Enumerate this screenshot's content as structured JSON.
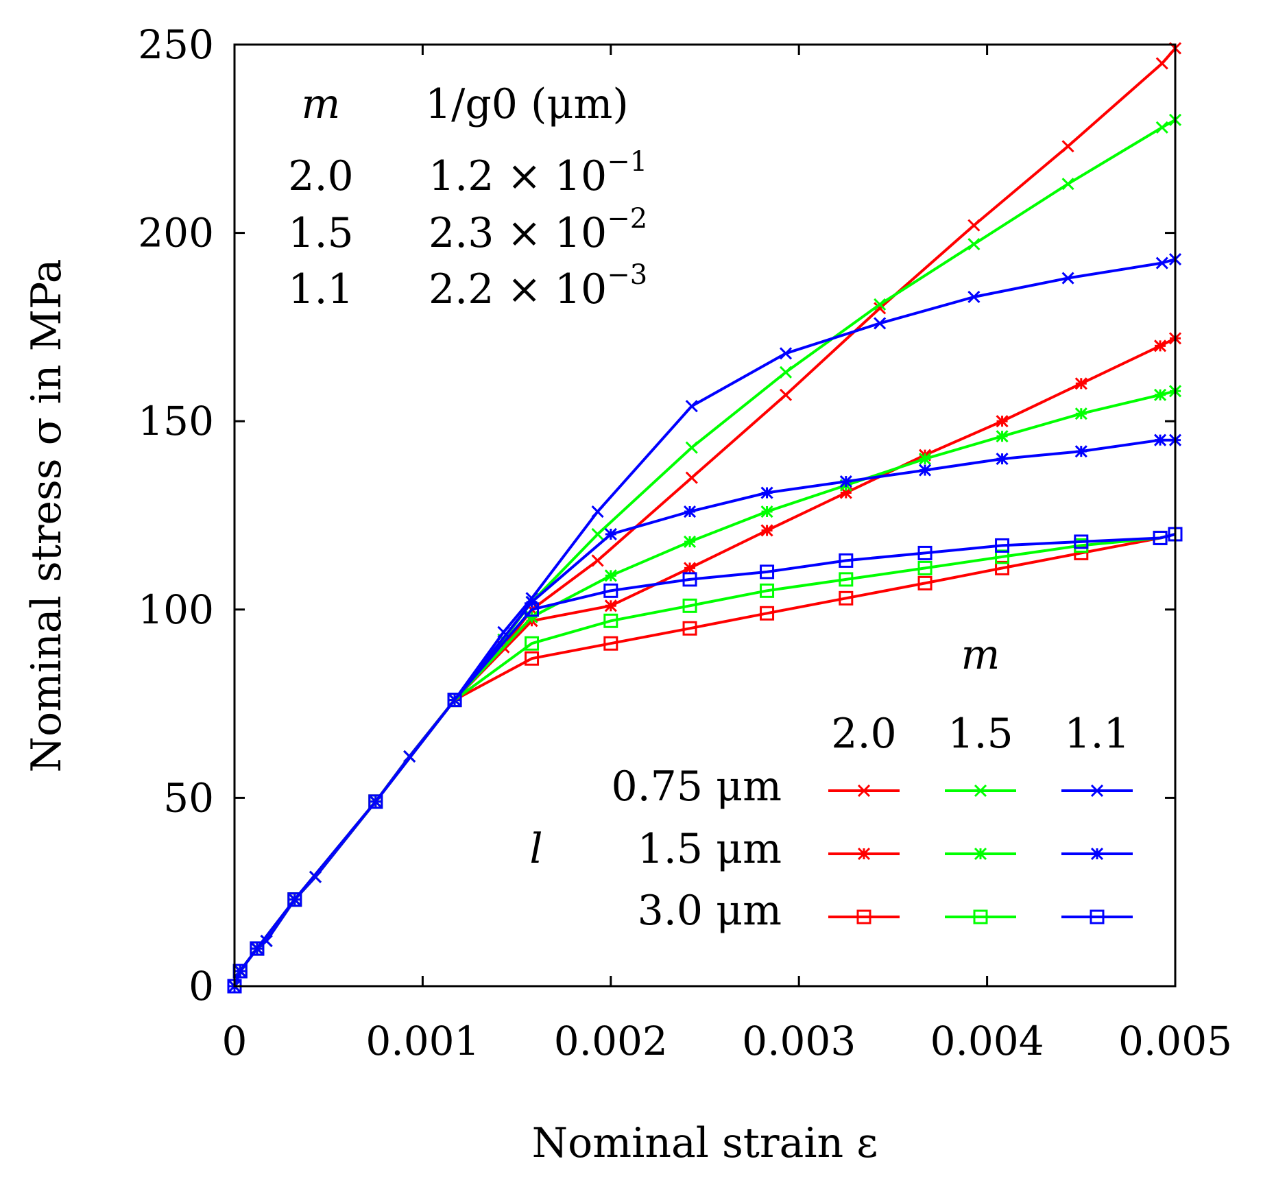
{
  "chart_data": {
    "type": "line",
    "xlabel": "Nominal strain ε",
    "ylabel": "Nominal stress σ in MPa",
    "xlim": [
      0,
      0.005
    ],
    "ylim": [
      0,
      250
    ],
    "xticks": [
      0,
      0.001,
      0.002,
      0.003,
      0.004,
      0.005
    ],
    "xtick_labels": [
      "0",
      "0.001",
      "0.002",
      "0.003",
      "0.004",
      "0.005"
    ],
    "yticks": [
      0,
      50,
      100,
      150,
      200,
      250
    ],
    "ytick_labels": [
      "0",
      "50",
      "100",
      "150",
      "200",
      "250"
    ],
    "grid": false,
    "series_colors": {
      "2.0": "#ff0000",
      "1.5": "#00ff00",
      "1.1": "#0000ff"
    },
    "parameter_table": {
      "header_m": "m",
      "header_g0": "1/g0 (μm)",
      "rows": [
        {
          "m": "2.0",
          "g0": "1.2 × 10^-1",
          "mant": "1.2 × 10",
          "exp": "−1"
        },
        {
          "m": "1.5",
          "g0": "2.3 × 10^-2",
          "mant": "2.3 × 10",
          "exp": "−2"
        },
        {
          "m": "1.1",
          "g0": "2.2 × 10^-3",
          "mant": "2.2 × 10",
          "exp": "−3"
        }
      ]
    },
    "legend": {
      "placement": "bottom-right",
      "m_label": "m",
      "m_values": [
        "2.0",
        "1.5",
        "1.1"
      ],
      "l_label": "l",
      "l_values": [
        "0.75 μm",
        "1.5 μm",
        "3.0 μm"
      ]
    },
    "series": [
      {
        "name": "l=0.75 μm, m=2.0",
        "color": "#ff0000",
        "marker": "x",
        "x": [
          0,
          3e-05,
          0.00012,
          0.00017,
          0.00032,
          0.00043,
          0.00075,
          0.00093,
          0.00117,
          0.00143,
          0.00158,
          0.00193,
          0.00243,
          0.00293,
          0.00343,
          0.00393,
          0.00443,
          0.00493,
          0.005
        ],
        "y": [
          0,
          4,
          10,
          12,
          23,
          29,
          49,
          61,
          76,
          90,
          100,
          113,
          135,
          157,
          180,
          202,
          223,
          245,
          249
        ]
      },
      {
        "name": "l=0.75 μm, m=1.5",
        "color": "#00ff00",
        "marker": "x",
        "x": [
          0,
          3e-05,
          0.00012,
          0.00017,
          0.00032,
          0.00043,
          0.00075,
          0.00093,
          0.00117,
          0.00143,
          0.00158,
          0.00193,
          0.00243,
          0.00293,
          0.00343,
          0.00393,
          0.00443,
          0.00493,
          0.005
        ],
        "y": [
          0,
          4,
          10,
          12,
          23,
          29,
          49,
          61,
          76,
          92,
          102,
          120,
          143,
          163,
          181,
          197,
          213,
          228,
          230
        ]
      },
      {
        "name": "l=0.75 μm, m=1.1",
        "color": "#0000ff",
        "marker": "x",
        "x": [
          0,
          3e-05,
          0.00012,
          0.00017,
          0.00032,
          0.00043,
          0.00075,
          0.00093,
          0.00117,
          0.00143,
          0.00158,
          0.00193,
          0.00243,
          0.00293,
          0.00343,
          0.00393,
          0.00443,
          0.00493,
          0.005
        ],
        "y": [
          0,
          4,
          10,
          12,
          23,
          29,
          49,
          61,
          76,
          94,
          103,
          126,
          154,
          168,
          176,
          183,
          188,
          192,
          193
        ]
      },
      {
        "name": "l=1.5 μm, m=2.0",
        "color": "#ff0000",
        "marker": "x*",
        "x": [
          0,
          3e-05,
          0.00012,
          0.00032,
          0.00075,
          0.00117,
          0.00158,
          0.002,
          0.00242,
          0.00283,
          0.00325,
          0.00367,
          0.00408,
          0.0045,
          0.00492,
          0.005
        ],
        "y": [
          0,
          4,
          10,
          23,
          49,
          76,
          97,
          101,
          111,
          121,
          131,
          141,
          150,
          160,
          170,
          172
        ]
      },
      {
        "name": "l=1.5 μm, m=1.5",
        "color": "#00ff00",
        "marker": "x*",
        "x": [
          0,
          3e-05,
          0.00012,
          0.00032,
          0.00075,
          0.00117,
          0.00158,
          0.002,
          0.00242,
          0.00283,
          0.00325,
          0.00367,
          0.00408,
          0.0045,
          0.00492,
          0.005
        ],
        "y": [
          0,
          4,
          10,
          23,
          49,
          76,
          98,
          109,
          118,
          126,
          133,
          140,
          146,
          152,
          157,
          158
        ]
      },
      {
        "name": "l=1.5 μm, m=1.1",
        "color": "#0000ff",
        "marker": "x*",
        "x": [
          0,
          3e-05,
          0.00012,
          0.00032,
          0.00075,
          0.00117,
          0.00158,
          0.002,
          0.00242,
          0.00283,
          0.00325,
          0.00367,
          0.00408,
          0.0045,
          0.00492,
          0.005
        ],
        "y": [
          0,
          4,
          10,
          23,
          49,
          76,
          102,
          120,
          126,
          131,
          134,
          137,
          140,
          142,
          145,
          145
        ]
      },
      {
        "name": "l=3.0 μm, m=2.0",
        "color": "#ff0000",
        "marker": "square",
        "x": [
          0,
          3e-05,
          0.00012,
          0.00032,
          0.00075,
          0.00117,
          0.00158,
          0.002,
          0.00242,
          0.00283,
          0.00325,
          0.00367,
          0.00408,
          0.0045,
          0.00492,
          0.005
        ],
        "y": [
          0,
          4,
          10,
          23,
          49,
          76,
          87,
          91,
          95,
          99,
          103,
          107,
          111,
          115,
          119,
          120
        ]
      },
      {
        "name": "l=3.0 μm, m=1.5",
        "color": "#00ff00",
        "marker": "square",
        "x": [
          0,
          3e-05,
          0.00012,
          0.00032,
          0.00075,
          0.00117,
          0.00158,
          0.002,
          0.00242,
          0.00283,
          0.00325,
          0.00367,
          0.00408,
          0.0045,
          0.00492,
          0.005
        ],
        "y": [
          0,
          4,
          10,
          23,
          49,
          76,
          91,
          97,
          101,
          105,
          108,
          111,
          114,
          117,
          119,
          120
        ]
      },
      {
        "name": "l=3.0 μm, m=1.1",
        "color": "#0000ff",
        "marker": "square",
        "x": [
          0,
          3e-05,
          0.00012,
          0.00032,
          0.00075,
          0.00117,
          0.00158,
          0.002,
          0.00242,
          0.00283,
          0.00325,
          0.00367,
          0.00408,
          0.0045,
          0.00492,
          0.005
        ],
        "y": [
          0,
          4,
          10,
          23,
          49,
          76,
          100,
          105,
          108,
          110,
          113,
          115,
          117,
          118,
          119,
          120
        ]
      }
    ]
  }
}
